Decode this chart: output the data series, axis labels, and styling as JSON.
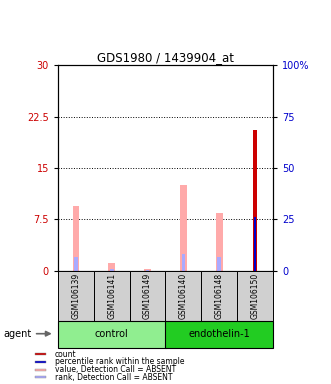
{
  "title": "GDS1980 / 1439904_at",
  "samples": [
    "GSM106139",
    "GSM106141",
    "GSM106149",
    "GSM106140",
    "GSM106148",
    "GSM106150"
  ],
  "groups": [
    {
      "name": "control",
      "indices": [
        0,
        1,
        2
      ],
      "color": "#90ee90"
    },
    {
      "name": "endothelin-1",
      "indices": [
        3,
        4,
        5
      ],
      "color": "#22cc22"
    }
  ],
  "value_absent": [
    9.5,
    1.2,
    0.3,
    12.5,
    8.5,
    0.0
  ],
  "rank_absent": [
    6.5,
    0.9,
    0.2,
    8.0,
    6.5,
    0.0
  ],
  "count_val": [
    0,
    0,
    0,
    0,
    0,
    20.5
  ],
  "percentile_val": [
    0,
    0,
    0,
    0,
    0,
    26.0
  ],
  "left_ylim": [
    0,
    30
  ],
  "right_ylim": [
    0,
    100
  ],
  "left_yticks": [
    0,
    7.5,
    15,
    22.5,
    30
  ],
  "right_yticks": [
    0,
    25,
    50,
    75,
    100
  ],
  "right_yticklabels": [
    "0",
    "25",
    "50",
    "75",
    "100%"
  ],
  "left_color": "#cc0000",
  "right_color": "#0000cc",
  "value_absent_color": "#ffaaaa",
  "rank_absent_color": "#aaaaff",
  "count_color": "#cc0000",
  "percentile_color": "#0000cc",
  "legend_items": [
    {
      "label": "count",
      "color": "#cc0000"
    },
    {
      "label": "percentile rank within the sample",
      "color": "#0000cc"
    },
    {
      "label": "value, Detection Call = ABSENT",
      "color": "#ffaaaa"
    },
    {
      "label": "rank, Detection Call = ABSENT",
      "color": "#aaaaff"
    }
  ],
  "control_bg": "#c8f0c8",
  "endothelin_bg": "#22cc22"
}
